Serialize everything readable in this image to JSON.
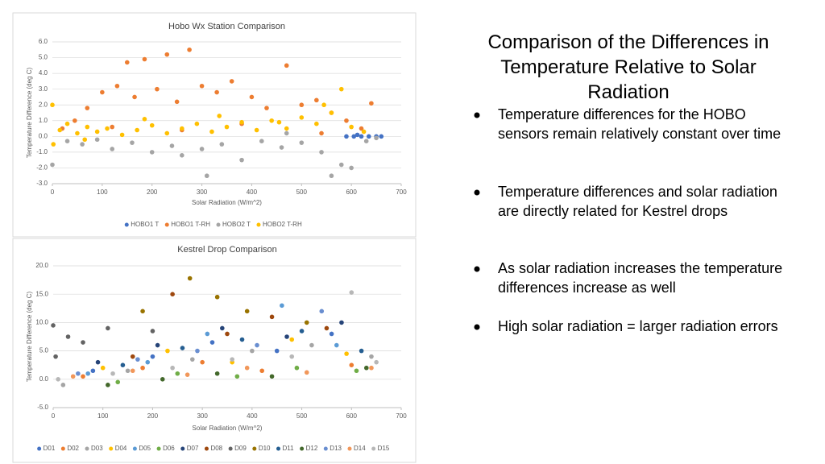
{
  "slide": {
    "title": "Comparison of the Differences in Temperature Relative to Solar Radiation",
    "bullets": [
      "Temperature differences for the HOBO sensors remain relatively constant over time",
      "Temperature differences and solar radiation are directly related for Kestrel drops",
      "As solar radiation increases the temperature differences increase as well",
      "High solar radiation = larger radiation errors"
    ]
  },
  "chart_data": [
    {
      "type": "scatter",
      "title": "Hobo Wx Station Comparison",
      "x_label": "Solar Radiation (W/m^2)",
      "y_label": "Temperature Difference (deg C)",
      "xlim": [
        0,
        700
      ],
      "xticks": [
        0,
        100,
        200,
        300,
        400,
        500,
        600,
        700
      ],
      "ylim": [
        -3,
        6
      ],
      "yticks": [
        {
          "value": -3,
          "label": "-3.0"
        },
        {
          "value": -2,
          "label": "-2.0"
        },
        {
          "value": -1,
          "label": "-1.0"
        },
        {
          "value": 0,
          "label": "0.0"
        },
        {
          "value": 1,
          "label": "1.0"
        },
        {
          "value": 2,
          "label": "2.0"
        },
        {
          "value": 3,
          "label": "3.0"
        },
        {
          "value": 4,
          "label": "4.0"
        },
        {
          "value": 5,
          "label": "5.0"
        },
        {
          "value": 6,
          "label": "6.0"
        }
      ],
      "grid": true,
      "series": [
        {
          "name": "HOBO1 T",
          "color": "#4472c4",
          "x": [
            590,
            605,
            620,
            635,
            650,
            660,
            612
          ],
          "values": [
            0,
            0,
            0,
            0,
            0,
            0,
            0.1
          ]
        },
        {
          "name": "HOBO1 T-RH",
          "color": "#ed7d31",
          "x": [
            20,
            45,
            70,
            100,
            130,
            150,
            165,
            185,
            210,
            230,
            250,
            275,
            300,
            330,
            360,
            400,
            430,
            470,
            500,
            530,
            560,
            590,
            620,
            640,
            120,
            260,
            380,
            540
          ],
          "values": [
            0.5,
            1.0,
            1.8,
            2.8,
            3.2,
            4.7,
            2.5,
            4.9,
            3.0,
            5.2,
            2.2,
            5.5,
            3.2,
            2.8,
            3.5,
            2.5,
            1.8,
            4.5,
            2.0,
            2.3,
            1.5,
            1.0,
            0.5,
            2.1,
            0.6,
            0.4,
            0.8,
            0.2
          ]
        },
        {
          "name": "HOBO2 T",
          "color": "#a5a5a5",
          "x": [
            0,
            30,
            60,
            90,
            120,
            160,
            200,
            240,
            260,
            300,
            340,
            380,
            420,
            460,
            500,
            540,
            560,
            580,
            600,
            630,
            650,
            310,
            470
          ],
          "values": [
            -1.8,
            -0.3,
            -0.5,
            -0.2,
            -0.8,
            -0.4,
            -1.0,
            -0.6,
            -1.2,
            -0.8,
            -0.5,
            -1.5,
            -0.3,
            -0.7,
            -0.4,
            -1.0,
            -2.5,
            -1.8,
            -2.0,
            -0.3,
            -0.1,
            -2.5,
            0.2
          ]
        },
        {
          "name": "HOBO2 T-RH",
          "color": "#ffc000",
          "x": [
            0,
            15,
            30,
            50,
            70,
            90,
            110,
            140,
            170,
            200,
            230,
            260,
            290,
            320,
            350,
            380,
            410,
            440,
            470,
            500,
            530,
            560,
            580,
            600,
            625,
            2,
            65,
            185,
            335,
            455,
            545
          ],
          "values": [
            2.0,
            0.4,
            0.8,
            0.2,
            0.6,
            0.3,
            0.5,
            0.1,
            0.4,
            0.7,
            0.2,
            0.5,
            0.8,
            0.3,
            0.6,
            0.9,
            0.4,
            1.0,
            0.5,
            1.2,
            0.8,
            1.5,
            3.0,
            0.6,
            0.3,
            -0.5,
            -0.2,
            1.1,
            1.3,
            0.9,
            2.0
          ]
        }
      ]
    },
    {
      "type": "scatter",
      "title": "Kestrel Drop Comparison",
      "x_label": "Solar Radiation (W/m^2)",
      "y_label": "Temperature Difference (deg C)",
      "xlim": [
        0,
        700
      ],
      "xticks": [
        0,
        100,
        200,
        300,
        400,
        500,
        600,
        700
      ],
      "ylim": [
        -5,
        20
      ],
      "yticks": [
        {
          "value": -5,
          "label": "-5.0"
        },
        {
          "value": 0,
          "label": "0.0"
        },
        {
          "value": 5,
          "label": "5.0"
        },
        {
          "value": 10,
          "label": "10.0"
        },
        {
          "value": 15,
          "label": "15.0"
        },
        {
          "value": 20,
          "label": "20.0"
        }
      ],
      "grid": true,
      "series": [
        {
          "name": "D01",
          "color": "#4472c4",
          "x": [
            80,
            200,
            320,
            450,
            560
          ],
          "values": [
            1.5,
            4.0,
            6.5,
            5.0,
            8.0
          ]
        },
        {
          "name": "D02",
          "color": "#ed7d31",
          "x": [
            60,
            180,
            300,
            420,
            600
          ],
          "values": [
            0.5,
            2.0,
            3.0,
            1.5,
            2.5
          ]
        },
        {
          "name": "D03",
          "color": "#a5a5a5",
          "x": [
            20,
            150,
            280,
            400,
            520,
            640
          ],
          "values": [
            -1.0,
            1.5,
            3.5,
            5.0,
            6.0,
            4.0
          ]
        },
        {
          "name": "D04",
          "color": "#ffc000",
          "x": [
            100,
            230,
            360,
            480,
            590
          ],
          "values": [
            2.0,
            5.0,
            3.0,
            7.0,
            4.5
          ]
        },
        {
          "name": "D05",
          "color": "#5b9bd5",
          "x": [
            70,
            190,
            310,
            460,
            570
          ],
          "values": [
            1.0,
            3.0,
            8.0,
            13.0,
            6.0
          ]
        },
        {
          "name": "D06",
          "color": "#70ad47",
          "x": [
            130,
            250,
            370,
            490,
            610
          ],
          "values": [
            -0.5,
            1.0,
            0.5,
            2.0,
            1.5
          ]
        },
        {
          "name": "D07",
          "color": "#264478",
          "x": [
            90,
            210,
            340,
            470,
            580
          ],
          "values": [
            3.0,
            6.0,
            9.0,
            7.5,
            10.0
          ]
        },
        {
          "name": "D08",
          "color": "#9e480e",
          "x": [
            160,
            240,
            350,
            440,
            550
          ],
          "values": [
            4.0,
            15.0,
            8.0,
            11.0,
            9.0
          ]
        },
        {
          "name": "D09",
          "color": "#636363",
          "x": [
            0,
            5,
            30,
            60,
            110,
            200
          ],
          "values": [
            9.5,
            4.0,
            7.5,
            6.5,
            9.0,
            8.5
          ]
        },
        {
          "name": "D10",
          "color": "#997300",
          "x": [
            180,
            275,
            330,
            390,
            510
          ],
          "values": [
            12.0,
            17.8,
            14.5,
            12.0,
            10.0
          ]
        },
        {
          "name": "D11",
          "color": "#255e91",
          "x": [
            140,
            260,
            380,
            500,
            620
          ],
          "values": [
            2.5,
            5.5,
            7.0,
            8.5,
            5.0
          ]
        },
        {
          "name": "D12",
          "color": "#43682b",
          "x": [
            110,
            220,
            330,
            440,
            630
          ],
          "values": [
            -1.0,
            0.0,
            1.0,
            0.5,
            2.0
          ]
        },
        {
          "name": "D13",
          "color": "#698ed0",
          "x": [
            50,
            170,
            290,
            410,
            540
          ],
          "values": [
            1.0,
            3.5,
            5.0,
            6.0,
            12.0
          ]
        },
        {
          "name": "D14",
          "color": "#f1975a",
          "x": [
            40,
            160,
            270,
            390,
            510,
            640
          ],
          "values": [
            0.5,
            1.5,
            0.8,
            2.0,
            1.2,
            2.0
          ]
        },
        {
          "name": "D15",
          "color": "#b7b7b7",
          "x": [
            10,
            120,
            240,
            360,
            480,
            600,
            650
          ],
          "values": [
            0.0,
            1.0,
            2.0,
            3.5,
            4.0,
            15.3,
            3.0
          ]
        }
      ]
    }
  ]
}
